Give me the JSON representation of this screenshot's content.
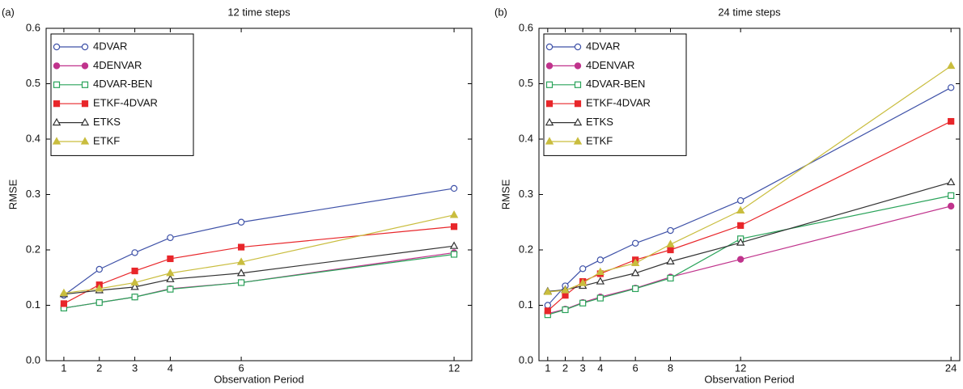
{
  "chart_data": [
    {
      "type": "line",
      "panel_label": "(a)",
      "title": "12 time steps",
      "xlabel": "Observation Period",
      "ylabel": "RMSE",
      "x": [
        1,
        2,
        3,
        4,
        6,
        12
      ],
      "xlim": [
        0.5,
        12.5
      ],
      "xticks": [
        1,
        2,
        3,
        4,
        6,
        12
      ],
      "ylim": [
        0,
        0.6
      ],
      "yticks": [
        {
          "value": 0,
          "label": "0.0"
        },
        0.1,
        0.2,
        0.3,
        0.4,
        0.5,
        0.6
      ],
      "legend": "upper left",
      "series": [
        {
          "name": "4DVAR",
          "color": "#3f52a8",
          "marker": "circle",
          "marker_filled": false,
          "values": [
            0.118,
            0.165,
            0.195,
            0.222,
            0.25,
            0.311
          ]
        },
        {
          "name": "4DENVAR",
          "color": "#c0338c",
          "marker": "circle",
          "marker_filled": true,
          "values": [
            0.095,
            0.105,
            0.115,
            0.13,
            0.141,
            0.195
          ]
        },
        {
          "name": "4DVAR-BEN",
          "color": "#2aa35a",
          "marker": "square",
          "marker_filled": false,
          "values": [
            0.095,
            0.105,
            0.115,
            0.129,
            0.141,
            0.192
          ]
        },
        {
          "name": "ETKF-4DVAR",
          "color": "#e8262a",
          "marker": "square",
          "marker_filled": true,
          "values": [
            0.103,
            0.137,
            0.162,
            0.184,
            0.205,
            0.242
          ]
        },
        {
          "name": "ETKS",
          "color": "#333333",
          "marker": "triangle",
          "marker_filled": false,
          "values": [
            0.12,
            0.127,
            0.133,
            0.147,
            0.158,
            0.207
          ]
        },
        {
          "name": "ETKF",
          "color": "#c9bd3e",
          "marker": "triangle",
          "marker_filled": true,
          "values": [
            0.122,
            0.13,
            0.141,
            0.158,
            0.178,
            0.263
          ]
        }
      ]
    },
    {
      "type": "line",
      "panel_label": "(b)",
      "title": "24 time steps",
      "xlabel": "Observation Period",
      "ylabel": "RMSE",
      "x": [
        1,
        2,
        3,
        4,
        6,
        8,
        12,
        24
      ],
      "xlim": [
        0.5,
        24.5
      ],
      "xticks": [
        1,
        2,
        3,
        4,
        6,
        8,
        12,
        24
      ],
      "ylim": [
        0,
        0.6
      ],
      "yticks": [
        {
          "value": 0,
          "label": "0.0"
        },
        0.1,
        0.2,
        0.3,
        0.4,
        0.5,
        0.6
      ],
      "legend": "upper left",
      "series": [
        {
          "name": "4DVAR",
          "color": "#3f52a8",
          "marker": "circle",
          "marker_filled": false,
          "values": [
            0.1,
            0.135,
            0.166,
            0.182,
            0.212,
            0.235,
            0.289,
            0.493
          ]
        },
        {
          "name": "4DENVAR",
          "color": "#c0338c",
          "marker": "circle",
          "marker_filled": true,
          "values": [
            0.085,
            0.093,
            0.105,
            0.115,
            0.131,
            0.151,
            0.183,
            0.279
          ]
        },
        {
          "name": "4DVAR-BEN",
          "color": "#2aa35a",
          "marker": "square",
          "marker_filled": false,
          "values": [
            0.083,
            0.092,
            0.104,
            0.113,
            0.13,
            0.149,
            0.22,
            0.298
          ]
        },
        {
          "name": "ETKF-4DVAR",
          "color": "#e8262a",
          "marker": "square",
          "marker_filled": true,
          "values": [
            0.09,
            0.118,
            0.143,
            0.157,
            0.182,
            0.2,
            0.244,
            0.432
          ]
        },
        {
          "name": "ETKS",
          "color": "#333333",
          "marker": "triangle",
          "marker_filled": false,
          "values": [
            0.125,
            0.128,
            0.135,
            0.143,
            0.158,
            0.179,
            0.213,
            0.322
          ]
        },
        {
          "name": "ETKF",
          "color": "#c9bd3e",
          "marker": "triangle",
          "marker_filled": true,
          "values": [
            0.124,
            0.127,
            0.14,
            0.16,
            0.176,
            0.21,
            0.271,
            0.532
          ]
        }
      ]
    }
  ]
}
